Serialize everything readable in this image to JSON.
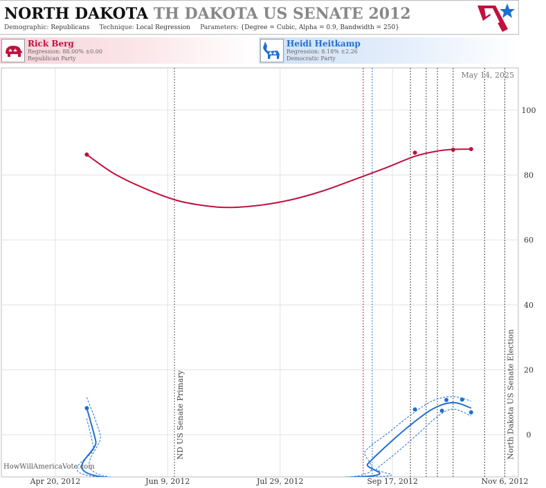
{
  "header": {
    "state": "NORTH DAKOTA",
    "race": "TH DAKOTA US SENATE 2012",
    "demographic_label": "Demographic:",
    "demographic": "Republicans",
    "technique_label": "Technique:",
    "technique": "Local Regression",
    "parameters_label": "Parameters:",
    "parameters": "{Degree = Cubic, Alpha = 0.9, Bandwidth = 250}"
  },
  "candidates": [
    {
      "name": "Rick Berg",
      "regression": "Regression: 88.00% ±0.00",
      "party": "Republican Party",
      "color": "#c0103c"
    },
    {
      "name": "Heidi Heitkamp",
      "regression": "Regression: 8.18% ±2.26",
      "party": "Democratic Party",
      "color": "#1f6fd0"
    }
  ],
  "credit": "HowWillAmericaVote.com",
  "chart_data": {
    "type": "line",
    "date_stamp": "May 14, 2025",
    "x_tick_labels": [
      "Apr 20, 2012",
      "Jun 9, 2012",
      "Jul 29, 2012",
      "Sep 17, 2012",
      "Nov 6, 2012"
    ],
    "x_ticks": [
      "2012-04-20",
      "2012-06-09",
      "2012-07-29",
      "2012-09-17",
      "2012-11-06"
    ],
    "x_range": [
      "2012-03-27",
      "2012-11-12"
    ],
    "y_ticks": [
      0,
      20,
      40,
      60,
      80,
      100
    ],
    "y_range": [
      -13,
      113
    ],
    "grid": true,
    "events": [
      {
        "date": "2012-06-12",
        "label": "ND US Senate Primary",
        "color": "#555555"
      },
      {
        "date": "2012-11-06",
        "label": "North Dakota US Senate Election",
        "color": "#555555"
      }
    ],
    "marker_lines": [
      {
        "date": "2012-09-04",
        "color": "#c0103c"
      },
      {
        "date": "2012-09-08",
        "color": "#1f6fd0"
      },
      {
        "date": "2012-09-25",
        "color": "#444444"
      },
      {
        "date": "2012-10-02",
        "color": "#444444"
      },
      {
        "date": "2012-10-07",
        "color": "#444444"
      },
      {
        "date": "2012-10-14",
        "color": "#444444"
      },
      {
        "date": "2012-10-28",
        "color": "#444444"
      }
    ],
    "series": [
      {
        "name": "Rick Berg",
        "color": "#c0103c",
        "points": [
          [
            "2012-05-04",
            86.3
          ],
          [
            "2012-09-27",
            86.9
          ],
          [
            "2012-10-14",
            87.8
          ],
          [
            "2012-10-22",
            88.0
          ]
        ],
        "curve": [
          [
            "2012-05-04",
            86.3
          ],
          [
            "2012-05-16",
            80.5
          ],
          [
            "2012-05-30",
            75.8
          ],
          [
            "2012-06-13",
            72.2
          ],
          [
            "2012-06-25",
            70.6
          ],
          [
            "2012-07-06",
            70.0
          ],
          [
            "2012-07-20",
            70.7
          ],
          [
            "2012-08-03",
            72.4
          ],
          [
            "2012-08-17",
            75.1
          ],
          [
            "2012-08-31",
            78.6
          ],
          [
            "2012-09-14",
            82.2
          ],
          [
            "2012-09-27",
            85.8
          ],
          [
            "2012-10-07",
            87.4
          ],
          [
            "2012-10-14",
            87.9
          ],
          [
            "2012-10-22",
            88.0
          ]
        ]
      },
      {
        "name": "Heidi Heitkamp",
        "color": "#1f6fd0",
        "points": [
          [
            "2012-05-04",
            8.2
          ],
          [
            "2012-09-27",
            7.8
          ],
          [
            "2012-10-09",
            7.4
          ],
          [
            "2012-10-11",
            10.7
          ],
          [
            "2012-10-18",
            10.8
          ],
          [
            "2012-10-22",
            6.9
          ]
        ],
        "curve": [
          [
            "2012-05-04",
            8.2
          ],
          [
            "2012-05-08",
            -2
          ],
          [
            "2012-05-11",
            -13
          ],
          [
            "2012-09-02",
            -13
          ],
          [
            "2012-09-06",
            -9
          ],
          [
            "2012-09-15",
            -3
          ],
          [
            "2012-09-25",
            3
          ],
          [
            "2012-10-05",
            8.0
          ],
          [
            "2012-10-14",
            9.9
          ],
          [
            "2012-10-22",
            8.2
          ]
        ],
        "band_upper": [
          [
            "2012-05-04",
            11.5
          ],
          [
            "2012-05-10",
            0
          ],
          [
            "2012-05-14",
            -13
          ],
          [
            "2012-08-29",
            -13
          ],
          [
            "2012-09-05",
            -5
          ],
          [
            "2012-09-15",
            0.5
          ],
          [
            "2012-09-25",
            6
          ],
          [
            "2012-10-05",
            10.5
          ],
          [
            "2012-10-14",
            11.7
          ],
          [
            "2012-10-22",
            10.4
          ]
        ],
        "band_lower": [
          [
            "2012-05-04",
            5.0
          ],
          [
            "2012-05-07",
            -4
          ],
          [
            "2012-05-09",
            -13
          ],
          [
            "2012-09-07",
            -13
          ],
          [
            "2012-09-10",
            -10.5
          ],
          [
            "2012-09-18",
            -6
          ],
          [
            "2012-09-28",
            0
          ],
          [
            "2012-10-07",
            5.6
          ],
          [
            "2012-10-14",
            7.9
          ],
          [
            "2012-10-22",
            5.8
          ]
        ]
      }
    ]
  }
}
